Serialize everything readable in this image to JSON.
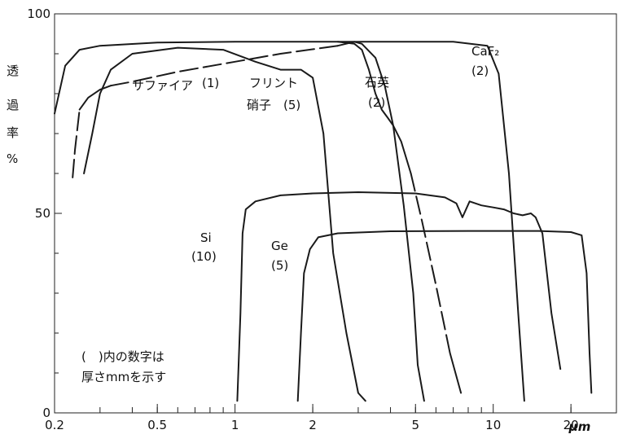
{
  "chart_data": {
    "type": "line",
    "xscale": "log",
    "xlim": [
      0.2,
      30
    ],
    "ylim": [
      0,
      100
    ],
    "y_ticks": [
      "0",
      "50",
      "100"
    ],
    "x_ticks": [
      "0.2",
      "0.5",
      "1",
      "2",
      "5",
      "10",
      "20"
    ],
    "x_unit": "μm",
    "ylabel_chars": [
      "透",
      "過",
      "率",
      "%"
    ],
    "note_lines": [
      "(　)内の数字は",
      "厚さmmを示す"
    ],
    "series": [
      {
        "name": "CaF₂",
        "thickness": "(2)",
        "x": [
          0.2,
          0.22,
          0.25,
          0.3,
          0.5,
          1,
          3,
          7,
          9.5,
          10.5,
          11.5,
          12.5,
          13.2
        ],
        "y": [
          75,
          87,
          91,
          92,
          92.8,
          93,
          93,
          93,
          92,
          85,
          60,
          25,
          3
        ]
      },
      {
        "name": "サファイア",
        "thickness": "(1)",
        "x": [
          0.235,
          0.24,
          0.25,
          0.27,
          0.3,
          0.33,
          0.4,
          0.6,
          1,
          1.5,
          2.5,
          2.9,
          3.1,
          3.5,
          3.8,
          4.1,
          4.5,
          4.9,
          5.1,
          5.4
        ],
        "y": [
          59,
          66,
          76,
          79,
          81,
          82,
          83,
          85.5,
          88,
          90,
          92,
          93,
          92.5,
          89,
          82,
          72,
          52,
          30,
          12,
          3
        ],
        "dashed_ranges": [
          [
            0.235,
            0.25
          ],
          [
            0.33,
            2.5
          ]
        ]
      },
      {
        "name": "フリント硝子",
        "thickness": "(5)",
        "x": [
          0.26,
          0.28,
          0.3,
          0.33,
          0.4,
          0.6,
          0.9,
          1.2,
          1.5,
          1.8,
          2.0,
          2.2,
          2.4,
          2.7,
          3.0,
          3.2
        ],
        "y": [
          60,
          70,
          80,
          86,
          90,
          91.5,
          91,
          88,
          86,
          86,
          84,
          70,
          40,
          20,
          5,
          3
        ]
      },
      {
        "name": "石英",
        "thickness": "(2)",
        "x": [
          2.5,
          2.9,
          3.1,
          3.3,
          3.5,
          3.7,
          3.9,
          4.1,
          4.4,
          4.8,
          5.3,
          6.0,
          6.8,
          7.5
        ],
        "y": [
          93,
          92.5,
          91,
          86,
          80,
          76,
          74,
          72,
          68,
          60,
          48,
          32,
          15,
          5
        ],
        "dashed_ranges": [
          [
            4.8,
            6.8
          ]
        ]
      },
      {
        "name": "Si",
        "thickness": "(10)",
        "x": [
          1.02,
          1.05,
          1.07,
          1.1,
          1.2,
          1.5,
          2,
          3,
          5,
          6.5,
          7.2,
          7.6,
          8.1,
          9.0,
          10.0,
          11.0,
          12.0,
          13.0,
          14.0,
          14.6,
          15.5,
          16.8,
          18.2
        ],
        "y": [
          3,
          25,
          45,
          51,
          53,
          54.5,
          55,
          55.3,
          55,
          54,
          52.5,
          49,
          53,
          52,
          51.5,
          51,
          50,
          49.5,
          50,
          49,
          45,
          25,
          11
        ]
      },
      {
        "name": "Ge",
        "thickness": "(5)",
        "x": [
          1.75,
          1.8,
          1.85,
          1.95,
          2.1,
          2.5,
          4,
          8,
          15,
          20,
          22,
          23,
          23.6,
          24
        ],
        "y": [
          3,
          20,
          35,
          41,
          44,
          45,
          45.5,
          45.6,
          45.6,
          45.3,
          44.5,
          35,
          15,
          5
        ]
      }
    ]
  }
}
